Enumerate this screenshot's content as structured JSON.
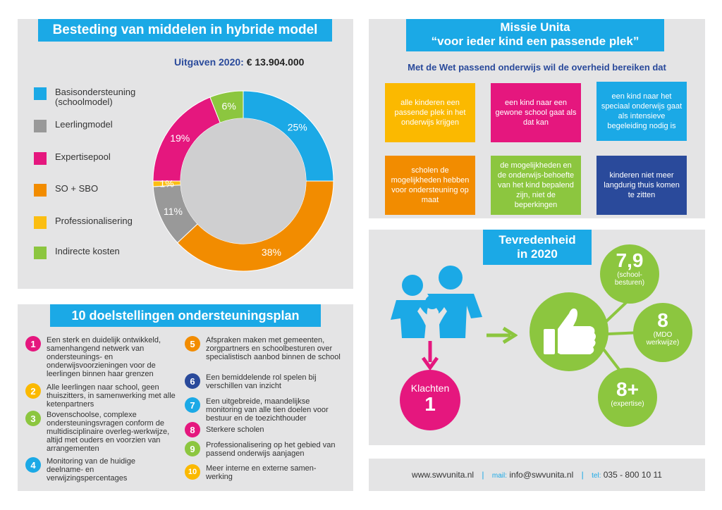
{
  "spending": {
    "title": "Besteding van middelen in hybride model",
    "expense_label": "Uitgaven 2020:",
    "expense_value": "€ 13.904.000",
    "legend": [
      {
        "label": "Basisondersteuning (schoolmodel)",
        "color": "#1ba9e6"
      },
      {
        "label": "Leerlingmodel",
        "color": "#999999"
      },
      {
        "label": "Expertisepool",
        "color": "#e5177e"
      },
      {
        "label": "SO + SBO",
        "color": "#f28c00"
      },
      {
        "label": "Professionalisering",
        "color": "#fbbe12"
      },
      {
        "label": "Indirecte kosten",
        "color": "#8cc63f"
      }
    ]
  },
  "chart_data": {
    "type": "pie",
    "categories": [
      "Basisondersteuning (schoolmodel)",
      "SO + SBO",
      "Leerlingmodel",
      "Professionalisering",
      "Expertisepool",
      "Indirecte kosten"
    ],
    "values": [
      25,
      38,
      11,
      1,
      19,
      6
    ],
    "labels": [
      "25%",
      "38%",
      "11%",
      "1%",
      "19%",
      "6%"
    ],
    "colors": [
      "#1ba9e6",
      "#f28c00",
      "#999999",
      "#fbbe12",
      "#e5177e",
      "#8cc63f"
    ]
  },
  "mission": {
    "title1": "Missie Unita",
    "title2": "“voor ieder kind een passende plek”",
    "subtitle": "Met de Wet passend onderwijs wil de overheid bereiken dat",
    "boxes": [
      {
        "text": "alle kinderen een passende plek in het onderwijs krijgen",
        "color": "#fbb900"
      },
      {
        "text": "een kind naar een gewone school gaat als dat kan",
        "color": "#e5177e"
      },
      {
        "text": "een kind naar het speciaal onderwijs gaat als intensieve begeleiding nodig is",
        "color": "#1ba9e6"
      },
      {
        "text": "scholen de mogelijkheden hebben voor ondersteuning op maat",
        "color": "#f28c00"
      },
      {
        "text": "de mogelijkheden en de onderwijs-behoefte van het kind bepalend zijn, niet de beperkingen",
        "color": "#8cc63f"
      },
      {
        "text": "kinderen niet meer langdurig thuis komen te zitten",
        "color": "#2a4a9b"
      }
    ]
  },
  "goals": {
    "title": "10 doelstellingen ondersteuningsplan",
    "items": [
      {
        "n": "1",
        "text": "Een sterk en duidelijk ontwikkeld, samenhangend netwerk van ondersteunings- en onderwijsvoorzieningen voor de leerlingen binnen haar grenzen",
        "color": "#e5177e"
      },
      {
        "n": "2",
        "text": "Alle leerlingen naar school, geen thuiszitters, in samenwerking met alle ketenpartners",
        "color": "#fbb900"
      },
      {
        "n": "3",
        "text": "Bovenschoolse, complexe ondersteuningsvragen conform de multidisciplinaire overleg-werkwijze, altijd met ouders en voorzien van arrangementen",
        "color": "#8cc63f"
      },
      {
        "n": "4",
        "text": "Monitoring van de huidige deelname- en verwijzingspercentages",
        "color": "#1ba9e6"
      },
      {
        "n": "5",
        "text": "Afspraken maken met gemeenten, zorgpartners en schoolbesturen over specialistisch aanbod binnen de school",
        "color": "#f28c00"
      },
      {
        "n": "6",
        "text": "Een bemiddelende rol spelen bij verschillen van inzicht",
        "color": "#2a4a9b"
      },
      {
        "n": "7",
        "text": "Een uitgebreide, maandelijkse monitoring van alle tien doelen voor bestuur en de toezichthouder",
        "color": "#1ba9e6"
      },
      {
        "n": "8",
        "text": "Sterkere scholen",
        "color": "#e5177e"
      },
      {
        "n": "9",
        "text": "Professionalisering op het gebied van passend onderwijs aanjagen",
        "color": "#8cc63f"
      },
      {
        "n": "10",
        "text": "Meer interne en externe samen-werking",
        "color": "#fbb900"
      }
    ]
  },
  "satisfaction": {
    "title1": "Tevredenheid",
    "title2": "in 2020",
    "complaints_label": "Klachten",
    "complaints_value": "1",
    "scores": [
      {
        "value": "7,9",
        "label": "(school-besturen)"
      },
      {
        "value": "8",
        "label": "(MDO werkwijze)"
      },
      {
        "value": "8+",
        "label": "(expertise)"
      }
    ]
  },
  "footer": {
    "website": "www.swvunita.nl",
    "sep": "|",
    "mail_label": "mail:",
    "mail": "info@swvunita.nl",
    "tel_label": "tel:",
    "tel": "035 - 800 10 11"
  }
}
